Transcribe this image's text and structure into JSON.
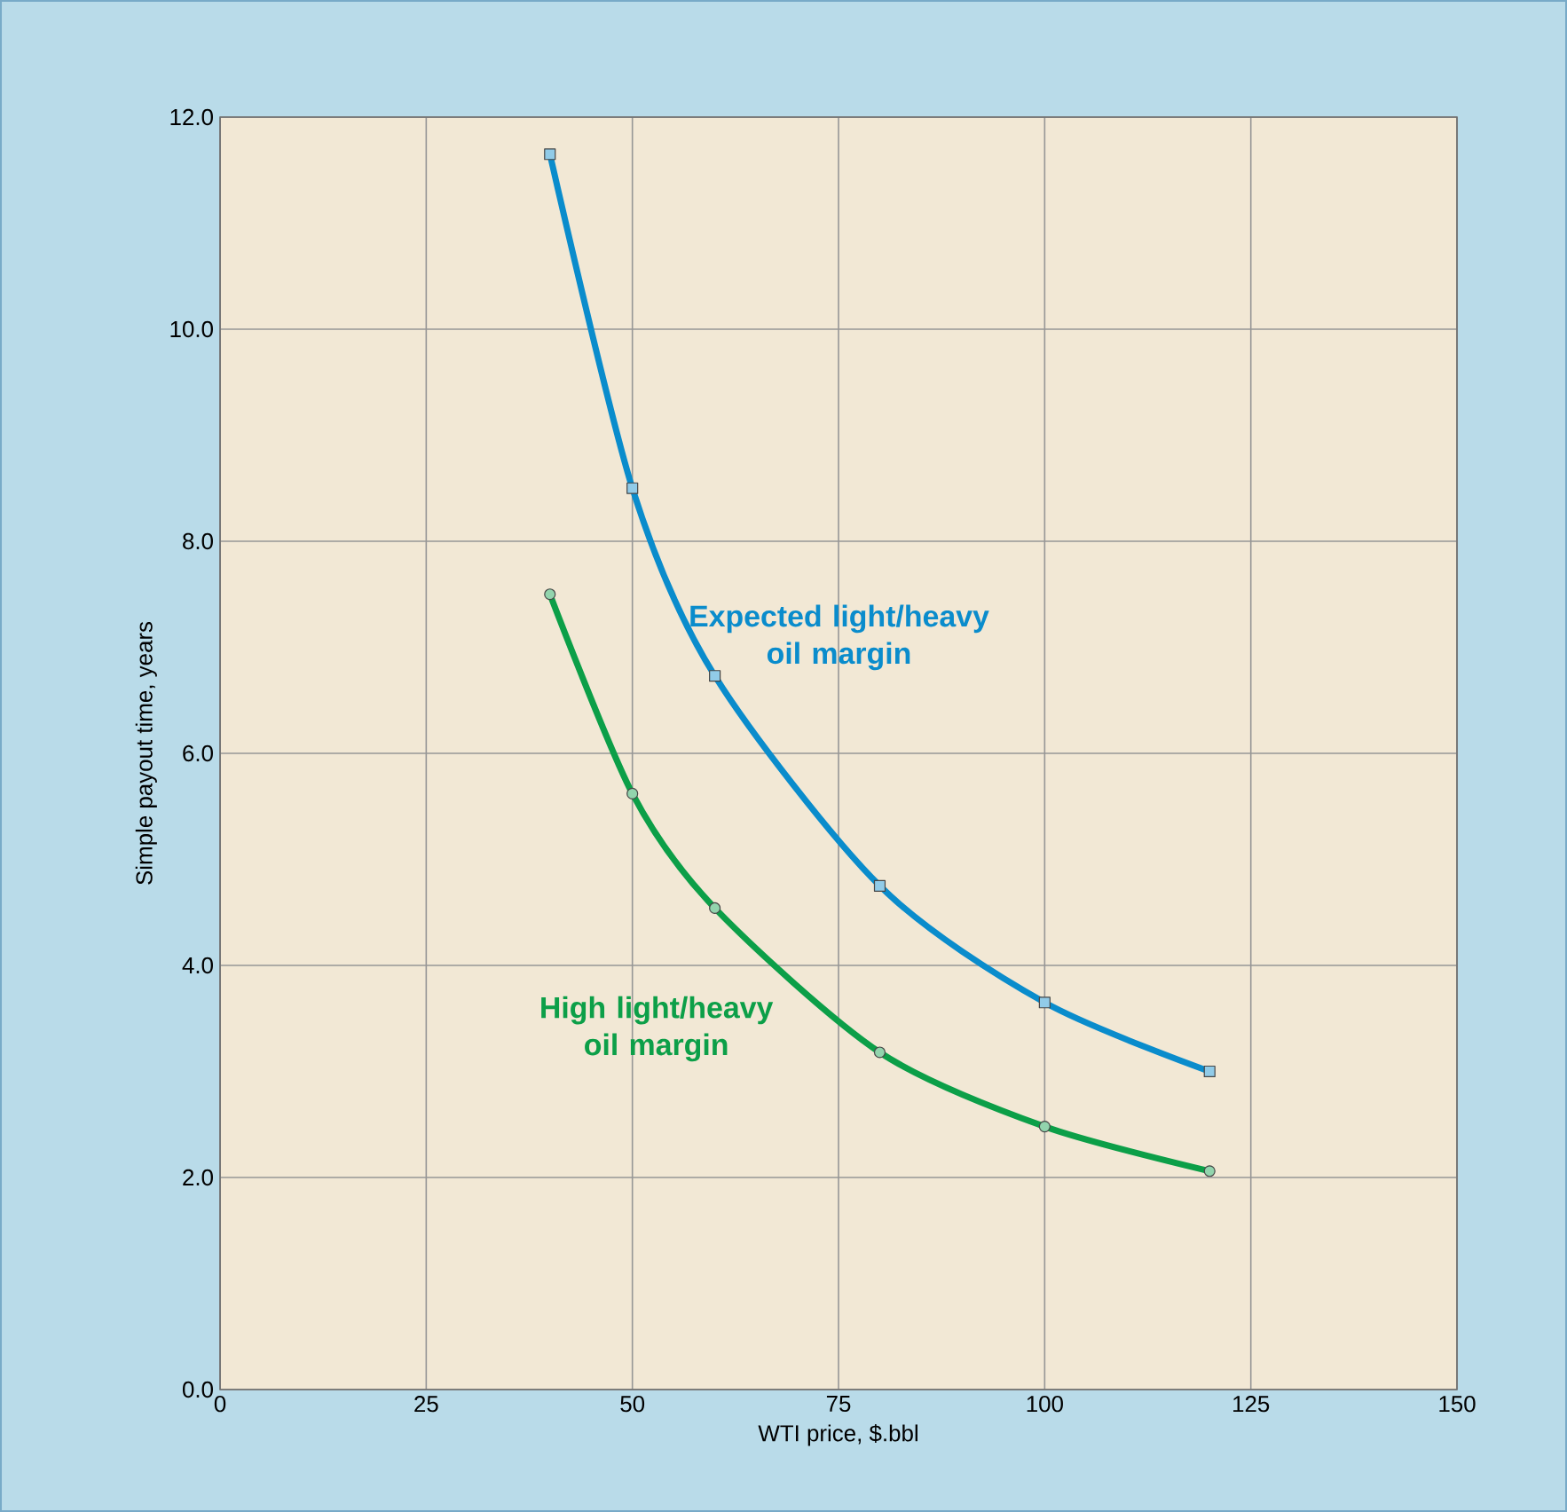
{
  "chart_data": {
    "type": "line",
    "xlabel": "WTI price, $.bbl",
    "ylabel": "Simple payout time, years",
    "x": [
      40,
      50,
      60,
      80,
      100,
      120
    ],
    "series": [
      {
        "name": "Expected light/heavy oil margin",
        "color": "#0a8ccc",
        "marker": "square",
        "values": [
          11.65,
          8.5,
          6.73,
          4.75,
          3.65,
          3.0
        ]
      },
      {
        "name": "High light/heavy oil margin",
        "color": "#0c9f48",
        "marker": "circle",
        "values": [
          7.5,
          5.62,
          4.54,
          3.18,
          2.48,
          2.06
        ]
      }
    ],
    "xlim": [
      0,
      150
    ],
    "xticks": [
      0,
      25,
      50,
      75,
      100,
      125,
      150
    ],
    "ylim": [
      0,
      12
    ],
    "yticks": [
      {
        "value": 0,
        "label": "0.0"
      },
      {
        "value": 2,
        "label": "2.0"
      },
      {
        "value": 4,
        "label": "4.0"
      },
      {
        "value": 6,
        "label": "6.0"
      },
      {
        "value": 8,
        "label": "8.0"
      },
      {
        "value": 10,
        "label": "10.0"
      },
      {
        "value": 12,
        "label": "12.0"
      }
    ],
    "grid": true,
    "line_style": "solid"
  }
}
